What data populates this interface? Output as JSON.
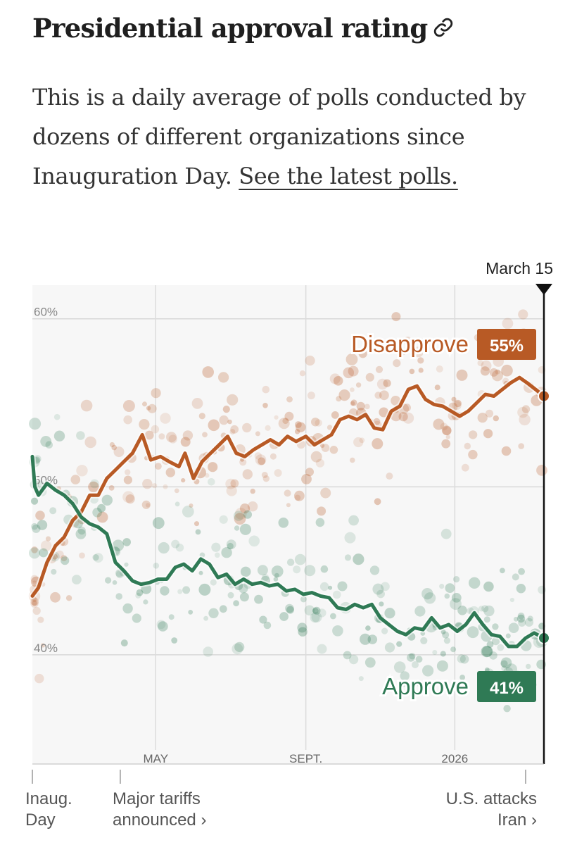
{
  "header": {
    "title": "Presidential approval rating",
    "link_icon": "link-icon"
  },
  "description": {
    "text": "This is a daily average of polls conducted by dozens of different organizations since Inauguration Day.",
    "link_text": "See the latest polls."
  },
  "chart_data": {
    "type": "line",
    "title": "Presidential approval rating",
    "x_domain": [
      "2025-01-20",
      "2026-03-15"
    ],
    "ylim": [
      33.5,
      62
    ],
    "y_ticks": [
      {
        "value": 60,
        "label": "60%"
      },
      {
        "value": 50,
        "label": "50%"
      },
      {
        "value": 40,
        "label": "40%"
      }
    ],
    "x_ticks": [
      {
        "date": "2025-05-01",
        "label": "MAY"
      },
      {
        "date": "2025-09-01",
        "label": "SEPT."
      },
      {
        "date": "2026-01-01",
        "label": "2026"
      }
    ],
    "current_date_label": "March 15",
    "current_date": "2026-03-15",
    "series": [
      {
        "name": "Disapprove",
        "color": "#b85a25",
        "final_value": 55,
        "final_label": "55%",
        "points": [
          [
            "2025-01-20",
            43.5
          ],
          [
            "2025-01-25",
            44
          ],
          [
            "2025-02-01",
            45.5
          ],
          [
            "2025-02-08",
            46.5
          ],
          [
            "2025-02-15",
            47
          ],
          [
            "2025-02-22",
            48
          ],
          [
            "2025-03-01",
            48.5
          ],
          [
            "2025-03-08",
            49.5
          ],
          [
            "2025-03-15",
            49.5
          ],
          [
            "2025-03-22",
            50.5
          ],
          [
            "2025-03-29",
            51
          ],
          [
            "2025-04-05",
            51.5
          ],
          [
            "2025-04-12",
            52
          ],
          [
            "2025-04-20",
            53.1
          ],
          [
            "2025-04-27",
            51.6
          ],
          [
            "2025-05-05",
            51.8
          ],
          [
            "2025-05-12",
            51.5
          ],
          [
            "2025-05-20",
            51.2
          ],
          [
            "2025-05-25",
            52
          ],
          [
            "2025-06-01",
            50.5
          ],
          [
            "2025-06-08",
            51.5
          ],
          [
            "2025-06-15",
            52
          ],
          [
            "2025-06-22",
            52.5
          ],
          [
            "2025-06-29",
            53
          ],
          [
            "2025-07-06",
            52
          ],
          [
            "2025-07-13",
            51.8
          ],
          [
            "2025-07-20",
            52.2
          ],
          [
            "2025-07-27",
            52.5
          ],
          [
            "2025-08-03",
            52.8
          ],
          [
            "2025-08-10",
            52.5
          ],
          [
            "2025-08-17",
            53
          ],
          [
            "2025-08-24",
            52.7
          ],
          [
            "2025-09-01",
            53
          ],
          [
            "2025-09-08",
            52.5
          ],
          [
            "2025-09-15",
            52.8
          ],
          [
            "2025-09-22",
            53.1
          ],
          [
            "2025-09-29",
            54
          ],
          [
            "2025-10-06",
            54.2
          ],
          [
            "2025-10-13",
            54
          ],
          [
            "2025-10-20",
            54.3
          ],
          [
            "2025-10-27",
            53.5
          ],
          [
            "2025-11-03",
            53.4
          ],
          [
            "2025-11-10",
            54.5
          ],
          [
            "2025-11-17",
            54.8
          ],
          [
            "2025-11-24",
            55.8
          ],
          [
            "2025-12-01",
            56
          ],
          [
            "2025-12-08",
            55.2
          ],
          [
            "2025-12-15",
            54.9
          ],
          [
            "2025-12-22",
            54.8
          ],
          [
            "2025-12-29",
            54.5
          ],
          [
            "2026-01-05",
            54.2
          ],
          [
            "2026-01-12",
            54.5
          ],
          [
            "2026-01-19",
            55
          ],
          [
            "2026-01-26",
            55.5
          ],
          [
            "2026-02-02",
            55.4
          ],
          [
            "2026-02-09",
            55.8
          ],
          [
            "2026-02-16",
            56.2
          ],
          [
            "2026-02-23",
            56.5
          ],
          [
            "2026-03-01",
            56.2
          ],
          [
            "2026-03-08",
            55.8
          ],
          [
            "2026-03-15",
            55.4
          ]
        ]
      },
      {
        "name": "Approve",
        "color": "#2f7a55",
        "final_value": 41,
        "final_label": "41%",
        "points": [
          [
            "2025-01-20",
            51.8
          ],
          [
            "2025-01-22",
            50
          ],
          [
            "2025-01-25",
            49.5
          ],
          [
            "2025-02-01",
            50.2
          ],
          [
            "2025-02-08",
            49.8
          ],
          [
            "2025-02-15",
            49.5
          ],
          [
            "2025-02-22",
            49
          ],
          [
            "2025-03-01",
            48.2
          ],
          [
            "2025-03-08",
            47.8
          ],
          [
            "2025-03-15",
            47.6
          ],
          [
            "2025-03-22",
            47.2
          ],
          [
            "2025-03-29",
            45.5
          ],
          [
            "2025-04-05",
            45
          ],
          [
            "2025-04-12",
            44.4
          ],
          [
            "2025-04-19",
            44.2
          ],
          [
            "2025-04-26",
            44.3
          ],
          [
            "2025-05-03",
            44.5
          ],
          [
            "2025-05-10",
            44.5
          ],
          [
            "2025-05-17",
            45.2
          ],
          [
            "2025-05-24",
            45.4
          ],
          [
            "2025-05-31",
            45
          ],
          [
            "2025-06-07",
            45.7
          ],
          [
            "2025-06-14",
            45.4
          ],
          [
            "2025-06-21",
            44.6
          ],
          [
            "2025-06-28",
            44.8
          ],
          [
            "2025-07-05",
            44.2
          ],
          [
            "2025-07-12",
            44.5
          ],
          [
            "2025-07-19",
            44.2
          ],
          [
            "2025-07-26",
            44.3
          ],
          [
            "2025-08-02",
            44.1
          ],
          [
            "2025-08-09",
            44.2
          ],
          [
            "2025-08-16",
            43.8
          ],
          [
            "2025-08-23",
            43.9
          ],
          [
            "2025-08-30",
            43.6
          ],
          [
            "2025-09-06",
            43.7
          ],
          [
            "2025-09-13",
            43.5
          ],
          [
            "2025-09-20",
            43.4
          ],
          [
            "2025-09-27",
            42.8
          ],
          [
            "2025-10-04",
            42.7
          ],
          [
            "2025-10-11",
            43
          ],
          [
            "2025-10-18",
            42.8
          ],
          [
            "2025-10-25",
            43
          ],
          [
            "2025-11-01",
            42.2
          ],
          [
            "2025-11-08",
            41.8
          ],
          [
            "2025-11-15",
            41.4
          ],
          [
            "2025-11-22",
            41.2
          ],
          [
            "2025-11-29",
            41.6
          ],
          [
            "2025-12-06",
            41.5
          ],
          [
            "2025-12-13",
            42.2
          ],
          [
            "2025-12-20",
            41.6
          ],
          [
            "2025-12-27",
            41.8
          ],
          [
            "2026-01-03",
            41.4
          ],
          [
            "2026-01-10",
            41.8
          ],
          [
            "2026-01-17",
            42.5
          ],
          [
            "2026-01-24",
            41.8
          ],
          [
            "2026-01-31",
            41.2
          ],
          [
            "2026-02-07",
            41.1
          ],
          [
            "2026-02-14",
            40.5
          ],
          [
            "2026-02-21",
            40.5
          ],
          [
            "2026-02-28",
            41
          ],
          [
            "2026-03-07",
            41.3
          ],
          [
            "2026-03-15",
            41
          ]
        ]
      }
    ],
    "annotations": [
      {
        "date": "2025-01-20",
        "lines": [
          "Inaug.",
          "Day"
        ],
        "align": "left"
      },
      {
        "date": "2025-04-02",
        "lines": [
          "Major tariffs",
          "announced ›"
        ],
        "align": "left"
      },
      {
        "date": "2026-02-28",
        "lines": [
          "U.S. attacks",
          "Iran ›"
        ],
        "align": "right"
      }
    ]
  }
}
